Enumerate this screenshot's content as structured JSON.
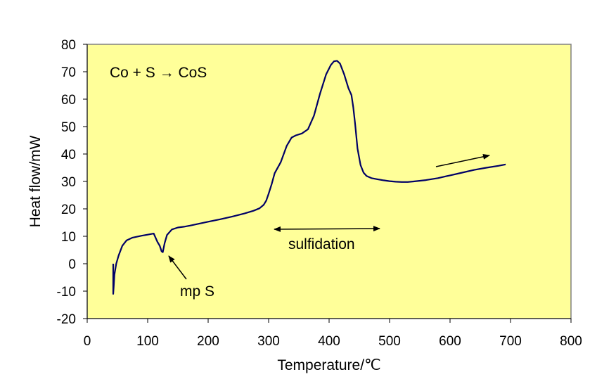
{
  "chart_data": {
    "type": "line",
    "title": "",
    "xlabel": "Temperature/℃",
    "ylabel": "Heat flow/mW",
    "xlim": [
      0,
      800
    ],
    "ylim": [
      -20,
      80
    ],
    "xticks": [
      0,
      100,
      200,
      300,
      400,
      500,
      600,
      700,
      800
    ],
    "yticks": [
      -20,
      -10,
      0,
      10,
      20,
      30,
      40,
      50,
      60,
      70,
      80
    ],
    "grid": false,
    "legend": "none",
    "plot_background": "#FFFF99",
    "line_color": "#000066",
    "annotations": [
      {
        "id": "reaction",
        "text": "Co + S → CoS"
      },
      {
        "id": "melting",
        "text": "mp S"
      },
      {
        "id": "sulfidation",
        "text": "sulfidation"
      }
    ],
    "series": [
      {
        "x": [
          43,
          43,
          44,
          45,
          48,
          52,
          58,
          65,
          75,
          90,
          100,
          110,
          113,
          116,
          120,
          123,
          125,
          128,
          132,
          140,
          150,
          160,
          170,
          185,
          200,
          220,
          240,
          260,
          275,
          285,
          292,
          296,
          300,
          305,
          310,
          320,
          330,
          338,
          345,
          355,
          365,
          375,
          385,
          395,
          403,
          408,
          413,
          418,
          425,
          432,
          437,
          440,
          443,
          447,
          452,
          457,
          462,
          470,
          480,
          490,
          500,
          510,
          520,
          530,
          540,
          560,
          580,
          600,
          620,
          640,
          660,
          680,
          692
        ],
        "y": [
          0,
          -11,
          -8,
          -4,
          0,
          3,
          6.5,
          8.5,
          9.5,
          10.2,
          10.6,
          11,
          9.5,
          8,
          6.5,
          4.5,
          4.2,
          7.5,
          10.5,
          12.5,
          13.2,
          13.5,
          13.9,
          14.6,
          15.3,
          16.2,
          17.2,
          18.3,
          19.3,
          20.2,
          21.5,
          23,
          25.5,
          29,
          33,
          37,
          43,
          46,
          46.8,
          47.5,
          49,
          54,
          62,
          69,
          72.5,
          73.8,
          74,
          73,
          69,
          64,
          61.5,
          57,
          51,
          42,
          36,
          33.2,
          32,
          31.2,
          30.8,
          30.4,
          30.1,
          29.9,
          29.8,
          29.8,
          30,
          30.5,
          31.2,
          32.2,
          33.2,
          34.2,
          35,
          35.7,
          36.2
        ]
      }
    ]
  }
}
